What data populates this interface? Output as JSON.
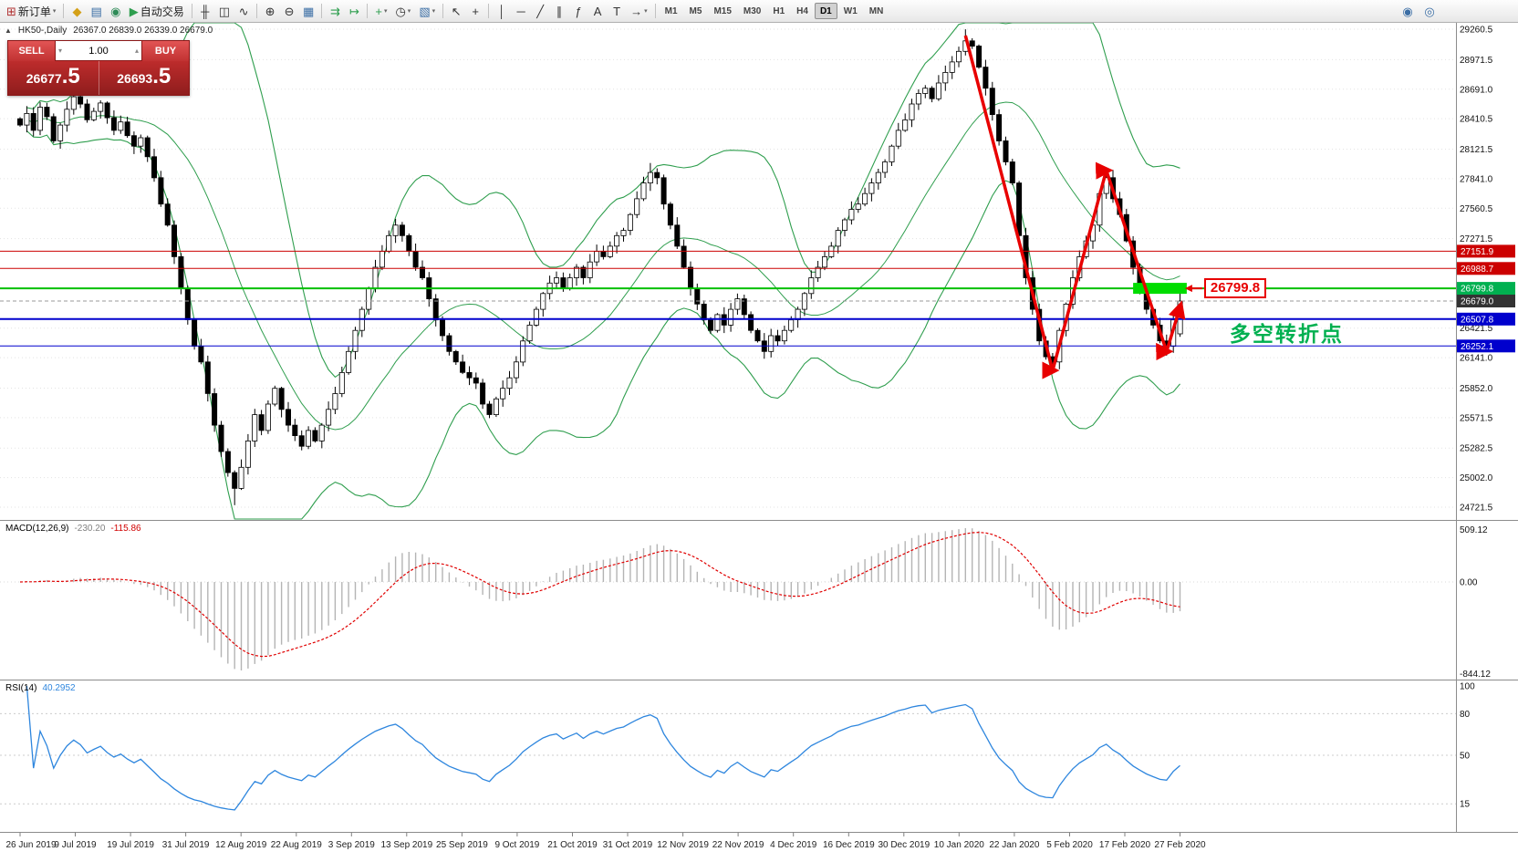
{
  "toolbar": {
    "items": [
      {
        "t": "btn",
        "name": "new-order-button",
        "glyph": "⊞",
        "gcolor": "#b03030",
        "label": "新订单",
        "caret": true
      },
      {
        "t": "sep"
      },
      {
        "t": "btn",
        "name": "market-watch-icon",
        "glyph": "◆",
        "gcolor": "#d4a017"
      },
      {
        "t": "btn",
        "name": "data-window-icon",
        "glyph": "▤",
        "gcolor": "#3b6ea5"
      },
      {
        "t": "btn",
        "name": "navigator-icon",
        "glyph": "◉",
        "gcolor": "#2e8b57"
      },
      {
        "t": "btn",
        "name": "auto-trading-button",
        "glyph": "▶",
        "gcolor": "#2e9e4e",
        "label": "自动交易"
      },
      {
        "t": "sep"
      },
      {
        "t": "btn",
        "name": "bar-chart-icon",
        "glyph": "╫",
        "gcolor": "#333333"
      },
      {
        "t": "btn",
        "name": "candlestick-icon",
        "glyph": "◫",
        "gcolor": "#333333"
      },
      {
        "t": "btn",
        "name": "line-chart-icon",
        "glyph": "∿",
        "gcolor": "#333333"
      },
      {
        "t": "sep"
      },
      {
        "t": "btn",
        "name": "zoom-in-icon",
        "glyph": "⊕",
        "gcolor": "#333333"
      },
      {
        "t": "btn",
        "name": "zoom-out-icon",
        "glyph": "⊖",
        "gcolor": "#333333"
      },
      {
        "t": "btn",
        "name": "tile-windows-icon",
        "glyph": "▦",
        "gcolor": "#3b6ea5"
      },
      {
        "t": "sep"
      },
      {
        "t": "btn",
        "name": "auto-scroll-icon",
        "glyph": "⇉",
        "gcolor": "#2e9e4e"
      },
      {
        "t": "btn",
        "name": "chart-shift-icon",
        "glyph": "↦",
        "gcolor": "#2e9e4e"
      },
      {
        "t": "sep"
      },
      {
        "t": "btn",
        "name": "indicators-icon",
        "glyph": "+",
        "gcolor": "#2e9e4e",
        "caret": true
      },
      {
        "t": "btn",
        "name": "periods-icon",
        "glyph": "◷",
        "gcolor": "#333333",
        "caret": true
      },
      {
        "t": "btn",
        "name": "templates-icon",
        "glyph": "▧",
        "gcolor": "#3b6ea5",
        "caret": true
      },
      {
        "t": "sep"
      },
      {
        "t": "btn",
        "name": "cursor-icon",
        "glyph": "↖",
        "gcolor": "#333333"
      },
      {
        "t": "btn",
        "name": "crosshair-icon",
        "glyph": "+",
        "gcolor": "#333333"
      },
      {
        "t": "sep"
      },
      {
        "t": "btn",
        "name": "vertical-line-icon",
        "glyph": "│",
        "gcolor": "#333333"
      },
      {
        "t": "btn",
        "name": "horizontal-line-icon",
        "glyph": "─",
        "gcolor": "#333333"
      },
      {
        "t": "btn",
        "name": "trendline-icon",
        "glyph": "╱",
        "gcolor": "#333333"
      },
      {
        "t": "btn",
        "name": "equidistant-channel-icon",
        "glyph": "∥",
        "gcolor": "#333333"
      },
      {
        "t": "btn",
        "name": "fibonacci-icon",
        "glyph": "ƒ",
        "gcolor": "#333333"
      },
      {
        "t": "btn",
        "name": "text-icon",
        "glyph": "A",
        "gcolor": "#333333"
      },
      {
        "t": "btn",
        "name": "text-label-icon",
        "glyph": "T",
        "gcolor": "#333333"
      },
      {
        "t": "btn",
        "name": "arrows-icon",
        "glyph": "→",
        "gcolor": "#333333",
        "caret": true
      },
      {
        "t": "sep"
      }
    ],
    "timeframes": [
      "M1",
      "M5",
      "M15",
      "M30",
      "H1",
      "H4",
      "D1",
      "W1",
      "MN"
    ],
    "active_timeframe": "D1",
    "right_icons": [
      {
        "name": "community-icon",
        "glyph": "◉",
        "gcolor": "#3b6ea5"
      },
      {
        "name": "search-icon",
        "glyph": "◎",
        "gcolor": "#3b6ea5"
      }
    ]
  },
  "chart_header": {
    "symbol": "HK50-,Daily",
    "ohlc": "26367.0 26839.0 26339.0 26679.0"
  },
  "one_click": {
    "sell_label": "SELL",
    "buy_label": "BUY",
    "volume": "1.00",
    "sell_price_main": "26677",
    "sell_price_frac": ".5",
    "buy_price_main": "26693",
    "buy_price_frac": ".5"
  },
  "price_axis": {
    "tick_labels": [
      "29260.5",
      "28971.5",
      "28691.0",
      "28410.5",
      "28121.5",
      "27841.0",
      "27560.5",
      "27271.5",
      "26421.5",
      "26141.0",
      "25852.0",
      "25571.5",
      "25282.5",
      "25002.0",
      "24721.5"
    ],
    "badges": [
      {
        "price": 27151.9,
        "label": "27151.9",
        "color": "#cc0000"
      },
      {
        "price": 26988.7,
        "label": "26988.7",
        "color": "#cc0000"
      },
      {
        "price": 26799.8,
        "label": "26799.8",
        "color": "#00b050"
      },
      {
        "price": 26679.0,
        "label": "26679.0",
        "color": "#333333"
      },
      {
        "price": 26507.8,
        "label": "26507.8",
        "color": "#0000cd"
      },
      {
        "price": 26252.1,
        "label": "26252.1",
        "color": "#0000cd"
      }
    ]
  },
  "macd_panel": {
    "name": "MACD(12,26,9)",
    "value_main": "-230.20",
    "value_signal": "-115.86",
    "scale_ticks": [
      "509.12",
      "0.00",
      "-844.12"
    ]
  },
  "rsi_panel": {
    "name": "RSI(14)",
    "value": "40.2952",
    "scale_ticks": [
      "100",
      "80",
      "50",
      "15"
    ],
    "levels": [
      80,
      50,
      15
    ]
  },
  "time_axis": [
    "26 Jun 2019",
    "9 Jul 2019",
    "19 Jul 2019",
    "31 Jul 2019",
    "12 Aug 2019",
    "22 Aug 2019",
    "3 Sep 2019",
    "13 Sep 2019",
    "25 Sep 2019",
    "9 Oct 2019",
    "21 Oct 2019",
    "31 Oct 2019",
    "12 Nov 2019",
    "22 Nov 2019",
    "4 Dec 2019",
    "16 Dec 2019",
    "30 Dec 2019",
    "10 Jan 2020",
    "22 Jan 2020",
    "5 Feb 2020",
    "17 Feb 2020",
    "27 Feb 2020"
  ],
  "colors": {
    "bull_candle": "#ffffff",
    "bear_candle": "#000000",
    "candle_outline": "#000000",
    "bollinger": "#2f9e4e",
    "macd_histogram": "#b4b4b4",
    "macd_signal": "#e00000",
    "rsi_line": "#2e86de",
    "annotation_red": "#e80000",
    "annotation_green": "#00b050",
    "highlight_green": "#00dd00",
    "grid": "#e3e3e3",
    "panel_border": "#8c8c8c"
  },
  "chart_data": {
    "type": "candlestick",
    "symbol": "HK50-",
    "timeframe": "Daily",
    "ohlc_current": {
      "open": 26367.0,
      "high": 26839.0,
      "low": 26339.0,
      "close": 26679.0
    },
    "ylim": [
      24600,
      29330
    ],
    "y_axis_ticks": [
      29260.5,
      28971.5,
      28691.0,
      28410.5,
      28121.5,
      27841.0,
      27560.5,
      27271.5,
      26421.5,
      26141.0,
      25852.0,
      25571.5,
      25282.5,
      25002.0,
      24721.5
    ],
    "closes": [
      28350,
      28460,
      28300,
      28520,
      28430,
      28200,
      28350,
      28500,
      28620,
      28550,
      28400,
      28480,
      28560,
      28420,
      28300,
      28380,
      28250,
      28150,
      28230,
      28050,
      27850,
      27600,
      27400,
      27100,
      26800,
      26500,
      26250,
      26100,
      25800,
      25500,
      25250,
      25050,
      24900,
      25100,
      25350,
      25600,
      25450,
      25700,
      25850,
      25650,
      25500,
      25400,
      25300,
      25450,
      25350,
      25500,
      25650,
      25800,
      26000,
      26200,
      26400,
      26600,
      26800,
      27000,
      27150,
      27300,
      27400,
      27300,
      27150,
      27000,
      26900,
      26700,
      26500,
      26350,
      26200,
      26100,
      26000,
      25950,
      25900,
      25700,
      25600,
      25750,
      25850,
      25950,
      26100,
      26300,
      26450,
      26600,
      26750,
      26850,
      26900,
      26800,
      26900,
      27000,
      26900,
      27050,
      27150,
      27100,
      27200,
      27300,
      27350,
      27500,
      27650,
      27800,
      27900,
      27850,
      27600,
      27400,
      27200,
      27000,
      26800,
      26650,
      26500,
      26400,
      26550,
      26450,
      26600,
      26700,
      26550,
      26400,
      26300,
      26200,
      26350,
      26300,
      26400,
      26500,
      26600,
      26750,
      26900,
      27000,
      27100,
      27200,
      27350,
      27450,
      27550,
      27600,
      27700,
      27800,
      27900,
      28000,
      28150,
      28300,
      28400,
      28550,
      28650,
      28700,
      28600,
      28750,
      28850,
      28950,
      29050,
      29150,
      29100,
      28900,
      28700,
      28450,
      28200,
      28000,
      27800,
      27300,
      26900,
      26600,
      26300,
      26150,
      26100,
      26400,
      26650,
      26900,
      27100,
      27250,
      27400,
      27700,
      27850,
      27650,
      27500,
      27250,
      27000,
      26800,
      26600,
      26450,
      26300,
      26250,
      26500,
      26679
    ],
    "wick_high_overrides": {
      "56": 27460,
      "94": 27990,
      "141": 29260
    },
    "wick_low_overrides": {
      "32": 24740,
      "154": 26000,
      "171": 26160
    },
    "indicators": {
      "bollinger": {
        "period": 20,
        "deviation": 2
      },
      "macd": {
        "fast": 12,
        "slow": 26,
        "signal": 9
      },
      "rsi": {
        "period": 14
      }
    },
    "horizontal_lines": [
      {
        "price": 27151.9,
        "color": "#cc0000",
        "width": 1,
        "dash": false
      },
      {
        "price": 26988.7,
        "color": "#cc0000",
        "width": 1,
        "dash": false
      },
      {
        "price": 26799.8,
        "color": "#00c000",
        "width": 2,
        "dash": false
      },
      {
        "price": 26679.0,
        "color": "#9a9a9a",
        "width": 1,
        "dash": true
      },
      {
        "price": 26507.8,
        "color": "#0000cd",
        "width": 2,
        "dash": false
      },
      {
        "price": 26252.1,
        "color": "#0000cd",
        "width": 1,
        "dash": false
      }
    ],
    "annotations": {
      "zigzag": {
        "color": "#e80000",
        "points": [
          [
            141,
            29200
          ],
          [
            154,
            26020
          ],
          [
            162,
            27920
          ],
          [
            171,
            26200
          ],
          [
            173,
            26620
          ]
        ]
      },
      "highlight_rect": {
        "from_index": 166,
        "to_index": 174,
        "price": 26799.8,
        "color": "#00dd00"
      },
      "price_callout": {
        "text": "26799.8",
        "color": "#e80000"
      },
      "turning_point": {
        "text": "多空转折点",
        "color": "#00b050"
      }
    }
  }
}
